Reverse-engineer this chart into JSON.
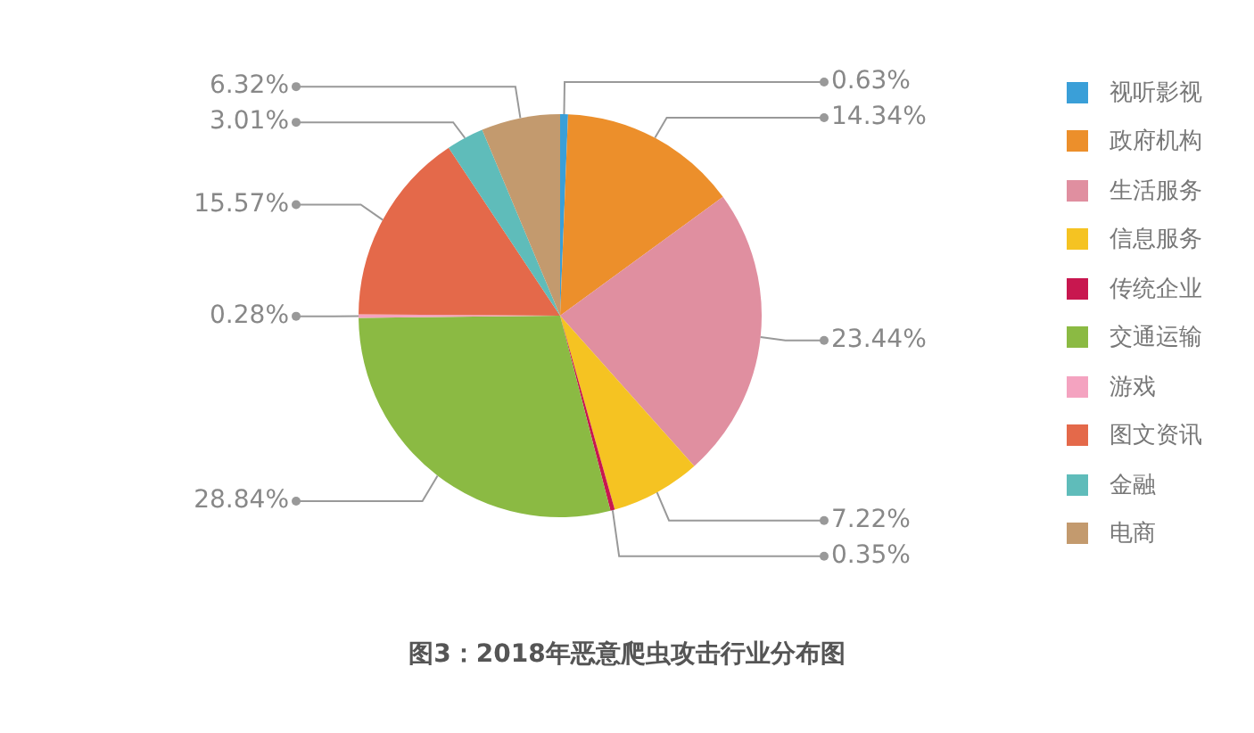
{
  "chart_data": {
    "type": "pie",
    "title": "图3：2018年恶意爬虫攻击行业分布图",
    "categories": [
      "视听影视",
      "政府机构",
      "生活服务",
      "信息服务",
      "传统企业",
      "交通运输",
      "游戏",
      "图文资讯",
      "金融",
      "电商"
    ],
    "values": [
      0.63,
      14.34,
      23.44,
      7.22,
      0.35,
      28.84,
      0.28,
      15.57,
      3.01,
      6.32
    ],
    "value_labels": [
      "0.63%",
      "14.34%",
      "23.44%",
      "7.22%",
      "0.35%",
      "28.84%",
      "0.28%",
      "15.57%",
      "3.01%",
      "6.32%"
    ],
    "colors": [
      "#3a9fd8",
      "#ec8f2b",
      "#e08fa0",
      "#f5c322",
      "#c8174f",
      "#8bba43",
      "#f4a3c0",
      "#e4694a",
      "#5fbcba",
      "#c39a6e"
    ],
    "legend": "right"
  }
}
